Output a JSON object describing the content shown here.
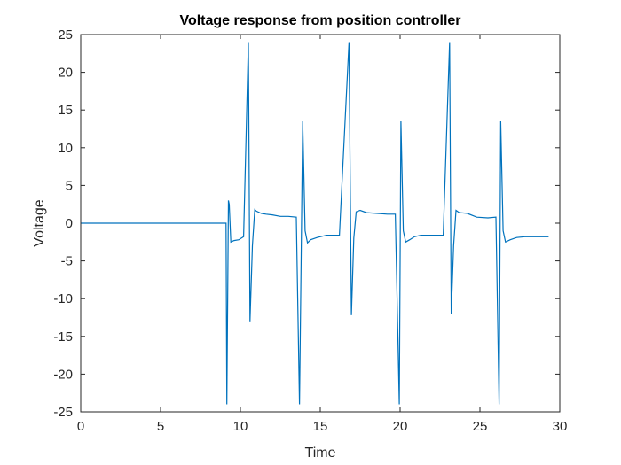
{
  "chart_data": {
    "type": "line",
    "title": "Voltage response from position controller",
    "xlabel": "Time",
    "ylabel": "Voltage",
    "xlim": [
      0,
      30
    ],
    "ylim": [
      -25,
      25
    ],
    "xticks": [
      0,
      5,
      10,
      15,
      20,
      25,
      30
    ],
    "yticks": [
      -25,
      -20,
      -15,
      -10,
      -5,
      0,
      5,
      10,
      15,
      20,
      25
    ],
    "grid": false,
    "line_color": "#0072BD",
    "series": [
      {
        "values": [
          [
            0,
            0
          ],
          [
            9.1,
            0
          ],
          [
            9.15,
            -24
          ],
          [
            9.25,
            3
          ],
          [
            9.3,
            2.5
          ],
          [
            9.4,
            -2.5
          ],
          [
            9.6,
            -2.3
          ],
          [
            9.9,
            -2.2
          ],
          [
            10.2,
            -1.8
          ],
          [
            10.5,
            24
          ],
          [
            10.6,
            -13
          ],
          [
            10.75,
            -3
          ],
          [
            10.9,
            1.8
          ],
          [
            11.0,
            1.6
          ],
          [
            11.3,
            1.3
          ],
          [
            11.6,
            1.2
          ],
          [
            12.0,
            1.1
          ],
          [
            12.5,
            0.9
          ],
          [
            13.0,
            0.9
          ],
          [
            13.5,
            0.8
          ],
          [
            13.7,
            -24
          ],
          [
            13.9,
            13.5
          ],
          [
            14.05,
            -1
          ],
          [
            14.2,
            -2.6
          ],
          [
            14.4,
            -2.2
          ],
          [
            14.8,
            -1.9
          ],
          [
            15.4,
            -1.6
          ],
          [
            16.2,
            -1.6
          ],
          [
            16.8,
            24
          ],
          [
            16.95,
            -12.2
          ],
          [
            17.1,
            -2
          ],
          [
            17.25,
            1.5
          ],
          [
            17.5,
            1.7
          ],
          [
            17.9,
            1.4
          ],
          [
            18.5,
            1.3
          ],
          [
            19.2,
            1.2
          ],
          [
            19.7,
            1.2
          ],
          [
            19.95,
            -24
          ],
          [
            20.05,
            13.5
          ],
          [
            20.2,
            -1
          ],
          [
            20.35,
            -2.5
          ],
          [
            20.6,
            -2.2
          ],
          [
            20.9,
            -1.8
          ],
          [
            21.3,
            -1.6
          ],
          [
            22.0,
            -1.6
          ],
          [
            22.7,
            -1.6
          ],
          [
            23.1,
            24
          ],
          [
            23.2,
            -12
          ],
          [
            23.35,
            -3
          ],
          [
            23.5,
            1.7
          ],
          [
            23.7,
            1.4
          ],
          [
            24.2,
            1.3
          ],
          [
            24.8,
            0.8
          ],
          [
            25.5,
            0.7
          ],
          [
            26.0,
            0.8
          ],
          [
            26.2,
            -24
          ],
          [
            26.3,
            13.5
          ],
          [
            26.45,
            -1
          ],
          [
            26.6,
            -2.5
          ],
          [
            26.9,
            -2.2
          ],
          [
            27.3,
            -1.9
          ],
          [
            27.8,
            -1.8
          ],
          [
            28.5,
            -1.8
          ],
          [
            29.3,
            -1.8
          ]
        ]
      }
    ]
  }
}
